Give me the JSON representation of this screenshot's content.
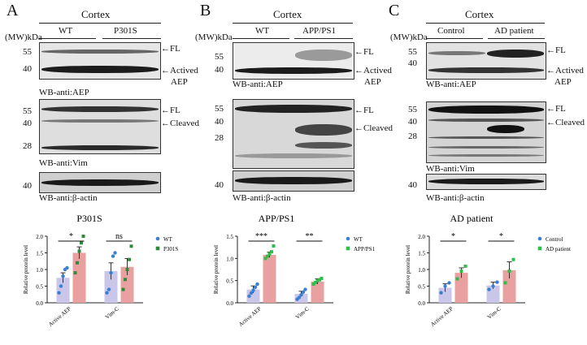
{
  "panels": [
    {
      "letter": "A",
      "tissue": "Cortex",
      "mw_label": "(MW)kDa",
      "groups": [
        "WT",
        "P301S"
      ],
      "blots": [
        {
          "ladder": [
            "55",
            "40"
          ],
          "label": "WB-anti:AEP",
          "arrows": [
            "FL",
            "Actived",
            "AEP"
          ]
        },
        {
          "ladder": [
            "55",
            "40",
            "28"
          ],
          "label": "WB-anti:Vim",
          "arrows": [
            "FL",
            "Cleaved"
          ]
        },
        {
          "ladder": [
            "40"
          ],
          "label": "WB-anti:β-actin",
          "arrows": []
        }
      ]
    },
    {
      "letter": "B",
      "tissue": "Cortex",
      "mw_label": "(MW)kDa",
      "groups": [
        "WT",
        "APP/PS1"
      ],
      "blots": [
        {
          "ladder": [
            "55",
            "40"
          ],
          "label": "WB-anti:AEP",
          "arrows": [
            "FL",
            "Actived",
            "AEP"
          ]
        },
        {
          "ladder": [
            "55",
            "40",
            "28"
          ],
          "label": "WB-anti:Vim",
          "arrows": [
            "FL",
            "Cleaved"
          ]
        },
        {
          "ladder": [
            "40"
          ],
          "label": "WB-anti:β-actin",
          "arrows": []
        }
      ]
    },
    {
      "letter": "C",
      "tissue": "Cortex",
      "mw_label": "(MW)kDa",
      "groups": [
        "Control",
        "AD patient"
      ],
      "blots": [
        {
          "ladder": [
            "55",
            "40"
          ],
          "label": "WB-anti:AEP",
          "arrows": [
            "FL",
            "Actived",
            "AEP"
          ]
        },
        {
          "ladder": [
            "55",
            "40",
            "28"
          ],
          "label": "WB-anti:Vim",
          "arrows": [
            "FL",
            "Cleaved"
          ]
        },
        {
          "ladder": [
            "40"
          ],
          "label": "WB-anti:β-actin",
          "arrows": []
        }
      ]
    }
  ],
  "chart_data": [
    {
      "type": "bar",
      "title": "P301S",
      "ylabel": "Relative protein level",
      "categories": [
        "Active AEP",
        "Vim-C"
      ],
      "ylim": [
        0,
        2.0
      ],
      "yticks": [
        "0.0",
        "0.5",
        "1.0",
        "1.5",
        "2.0"
      ],
      "series": [
        {
          "name": "WT",
          "color": "#c9c6ea",
          "dot": "#3a7fd0",
          "values": [
            0.75,
            0.95
          ],
          "err": [
            0.15,
            0.25
          ],
          "points": [
            [
              0.3,
              0.5,
              0.8,
              1.0,
              1.05
            ],
            [
              0.3,
              0.4,
              0.9,
              1.4,
              1.5
            ]
          ]
        },
        {
          "name": "P301S",
          "color": "#e8a0a0",
          "dot": "#2e8b3a",
          "values": [
            1.5,
            1.08
          ],
          "err": [
            0.18,
            0.25
          ],
          "points": [
            [
              0.9,
              1.2,
              1.55,
              1.8,
              2.0
            ],
            [
              0.4,
              0.7,
              1.0,
              1.3,
              1.7
            ]
          ]
        }
      ],
      "significance": [
        "*",
        "ns"
      ]
    },
    {
      "type": "bar",
      "title": "APP/PS1",
      "ylabel": "Relative protein level",
      "categories": [
        "Active AEP",
        "Vim-C"
      ],
      "ylim": [
        0,
        1.5
      ],
      "yticks": [
        "0.0",
        "0.5",
        "1.0",
        "1.5"
      ],
      "series": [
        {
          "name": "WT",
          "color": "#c9c6ea",
          "dot": "#3a7fd0",
          "values": [
            0.3,
            0.2
          ],
          "err": [
            0.08,
            0.06
          ],
          "points": [
            [
              0.15,
              0.22,
              0.28,
              0.35,
              0.42
            ],
            [
              0.08,
              0.12,
              0.18,
              0.24,
              0.3
            ]
          ]
        },
        {
          "name": "APP/PS1",
          "color": "#e8a0a0",
          "dot": "#2ebd4a",
          "values": [
            1.08,
            0.48
          ],
          "err": [
            0.06,
            0.06
          ],
          "points": [
            [
              1.0,
              1.05,
              1.1,
              1.15,
              1.28
            ],
            [
              0.42,
              0.46,
              0.5,
              0.52,
              0.55
            ]
          ]
        }
      ],
      "significance": [
        "***",
        "**"
      ]
    },
    {
      "type": "bar",
      "title": "AD patient",
      "ylabel": "Relative protein level",
      "categories": [
        "Active AEP",
        "Vim-C"
      ],
      "ylim": [
        0,
        2.0
      ],
      "yticks": [
        "0.0",
        "0.5",
        "1.0",
        "1.5",
        "2.0"
      ],
      "series": [
        {
          "name": "Control",
          "color": "#c9c6ea",
          "dot": "#3a7fd0",
          "values": [
            0.45,
            0.52
          ],
          "err": [
            0.12,
            0.1
          ],
          "points": [
            [
              0.3,
              0.5,
              0.6
            ],
            [
              0.4,
              0.5,
              0.62
            ]
          ]
        },
        {
          "name": "AD patient",
          "color": "#e8a0a0",
          "dot": "#2ebd4a",
          "values": [
            0.9,
            0.98
          ],
          "err": [
            0.15,
            0.25
          ],
          "points": [
            [
              0.72,
              0.95,
              1.1
            ],
            [
              0.6,
              0.95,
              1.3
            ]
          ]
        }
      ],
      "significance": [
        "*",
        "*"
      ]
    }
  ]
}
